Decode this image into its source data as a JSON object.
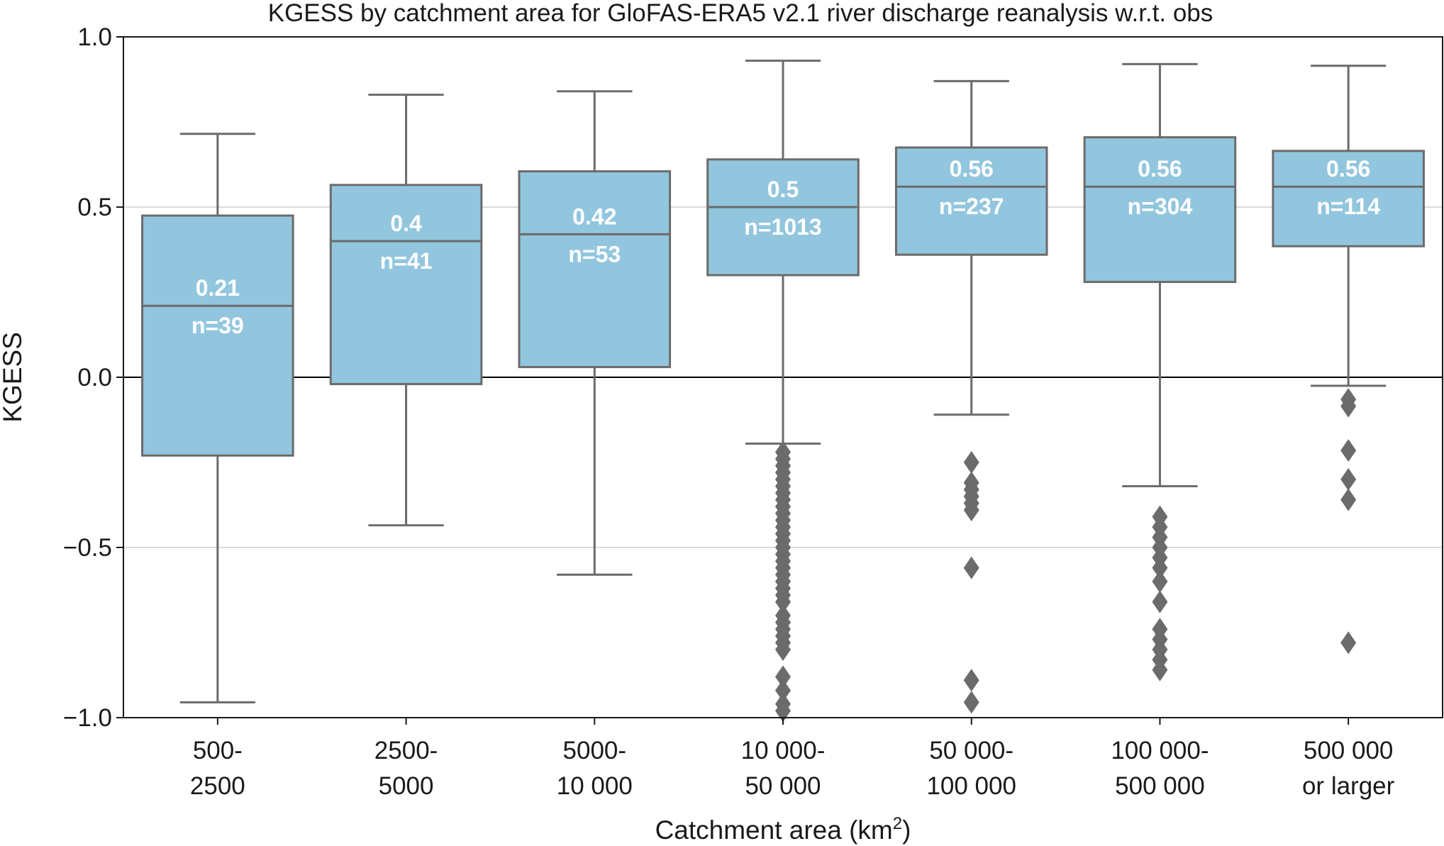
{
  "chart_data": {
    "type": "box",
    "title": "KGESS by catchment area for GloFAS-ERA5 v2.1 river discharge reanalysis w.r.t. obs",
    "xlabel": "Catchment area (km",
    "xlabel_superscript": "2",
    "xlabel_suffix": ")",
    "ylabel": "KGESS",
    "ylim": [
      -1.0,
      1.0
    ],
    "yticks": [
      {
        "value": 1.0,
        "label": "1.0"
      },
      {
        "value": 0.5,
        "label": "0.5"
      },
      {
        "value": 0.0,
        "label": "0.0"
      },
      {
        "value": -0.5,
        "label": "−0.5"
      },
      {
        "value": -1.0,
        "label": "−1.0"
      }
    ],
    "grid": true,
    "reference_line": 0.0,
    "box_color": "#92c6de",
    "line_color": "#6b6b6b",
    "categories": [
      {
        "line1": "500-",
        "line2": "2500",
        "whisker_low": -0.955,
        "q1": -0.23,
        "median": 0.21,
        "q3": 0.475,
        "whisker_high": 0.715,
        "median_label": "0.21",
        "n_label": "n=39",
        "outliers": []
      },
      {
        "line1": "2500-",
        "line2": "5000",
        "whisker_low": -0.435,
        "q1": -0.02,
        "median": 0.4,
        "q3": 0.565,
        "whisker_high": 0.83,
        "median_label": "0.4",
        "n_label": "n=41",
        "outliers": []
      },
      {
        "line1": "5000-",
        "line2": "10 000",
        "whisker_low": -0.58,
        "q1": 0.03,
        "median": 0.42,
        "q3": 0.605,
        "whisker_high": 0.84,
        "median_label": "0.42",
        "n_label": "n=53",
        "outliers": []
      },
      {
        "line1": "10 000-",
        "line2": "50 000",
        "whisker_low": -0.195,
        "q1": 0.3,
        "median": 0.5,
        "q3": 0.64,
        "whisker_high": 0.93,
        "median_label": "0.5",
        "n_label": "n=1013",
        "outliers": [
          -0.22,
          -0.24,
          -0.26,
          -0.28,
          -0.3,
          -0.32,
          -0.34,
          -0.36,
          -0.38,
          -0.4,
          -0.42,
          -0.44,
          -0.46,
          -0.48,
          -0.5,
          -0.52,
          -0.54,
          -0.56,
          -0.58,
          -0.6,
          -0.62,
          -0.64,
          -0.66,
          -0.7,
          -0.72,
          -0.74,
          -0.76,
          -0.78,
          -0.8,
          -0.88,
          -0.92,
          -0.96,
          -0.98
        ]
      },
      {
        "line1": "50 000-",
        "line2": "100 000",
        "whisker_low": -0.11,
        "q1": 0.36,
        "median": 0.56,
        "q3": 0.675,
        "whisker_high": 0.87,
        "median_label": "0.56",
        "n_label": "n=237",
        "outliers": [
          -0.25,
          -0.31,
          -0.33,
          -0.35,
          -0.37,
          -0.39,
          -0.56,
          -0.89,
          -0.955
        ]
      },
      {
        "line1": "100 000-",
        "line2": "500 000",
        "whisker_low": -0.32,
        "q1": 0.28,
        "median": 0.56,
        "q3": 0.705,
        "whisker_high": 0.92,
        "median_label": "0.56",
        "n_label": "n=304",
        "outliers": [
          -0.41,
          -0.44,
          -0.47,
          -0.5,
          -0.53,
          -0.56,
          -0.6,
          -0.66,
          -0.74,
          -0.77,
          -0.8,
          -0.83,
          -0.86
        ]
      },
      {
        "line1": "500 000",
        "line2": "or larger",
        "whisker_low": -0.025,
        "q1": 0.385,
        "median": 0.56,
        "q3": 0.665,
        "whisker_high": 0.915,
        "median_label": "0.56",
        "n_label": "n=114",
        "outliers": [
          -0.065,
          -0.085,
          -0.215,
          -0.3,
          -0.36,
          -0.78
        ]
      }
    ]
  }
}
